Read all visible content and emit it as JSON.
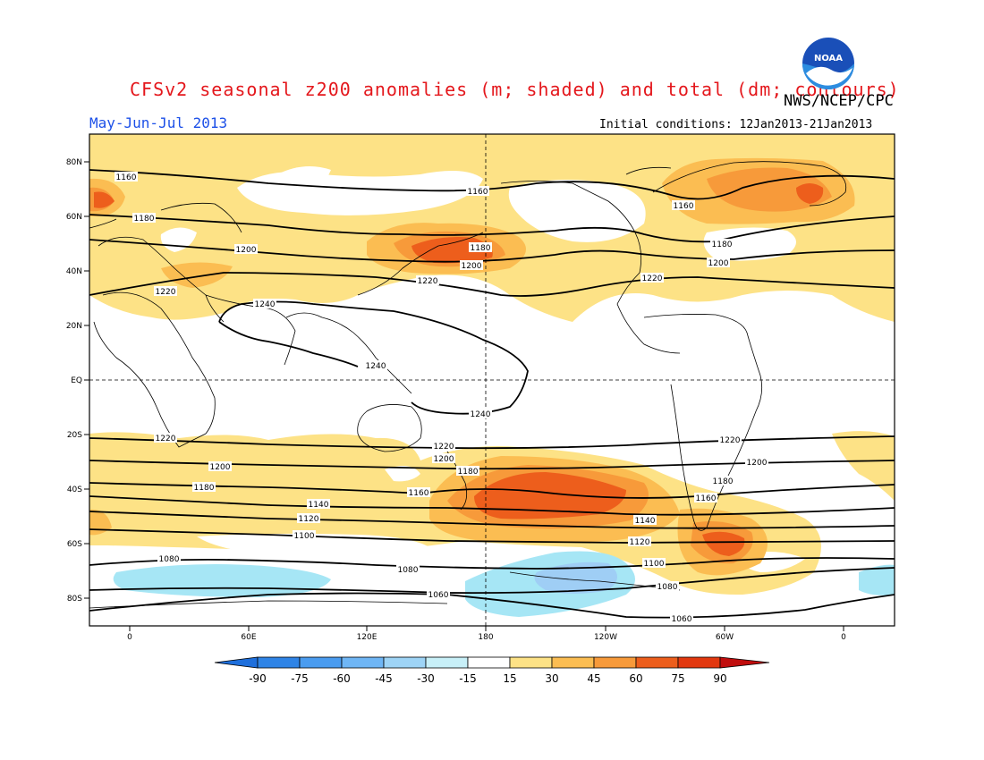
{
  "header": {
    "title": "CFSv2 seasonal z200 anomalies (m; shaded) and total (dm; contours)",
    "agency": "NWS/NCEP/CPC",
    "period": "May-Jun-Jul 2013",
    "initial_conditions": "Initial conditions: 12Jan2013-21Jan2013",
    "logo_text": "NOAA"
  },
  "axes": {
    "lat_labels": [
      "80N",
      "60N",
      "40N",
      "20N",
      "EQ",
      "20S",
      "40S",
      "60S",
      "80S"
    ],
    "lon_labels": [
      "0",
      "60E",
      "120E",
      "180",
      "120W",
      "60W",
      "0"
    ]
  },
  "contour_labels": [
    "1160",
    "1180",
    "1200",
    "1220",
    "1240",
    "1140",
    "1120",
    "1100",
    "1080",
    "1060"
  ],
  "colorbar": {
    "labels": [
      "-90",
      "-75",
      "-60",
      "-45",
      "-30",
      "-15",
      "15",
      "30",
      "45",
      "60",
      "75",
      "90"
    ],
    "colors": [
      "#1e6fdc",
      "#2f84e6",
      "#4a9cf0",
      "#6fb6f5",
      "#9ed4f6",
      "#c8f0f8",
      "#ffffff",
      "#fde286",
      "#fbbd52",
      "#f79a3a",
      "#ed5e1c",
      "#e2380f",
      "#c00d0d",
      "#a00000"
    ]
  },
  "colors": {
    "title": "#e4171c",
    "period": "#1c50e8",
    "light_orange": "#fde286",
    "orange": "#fbbd52",
    "dark_orange": "#f79a3a",
    "red": "#ed5e1c",
    "light_blue": "#a6d8f6",
    "blue": "#86c1f3"
  }
}
